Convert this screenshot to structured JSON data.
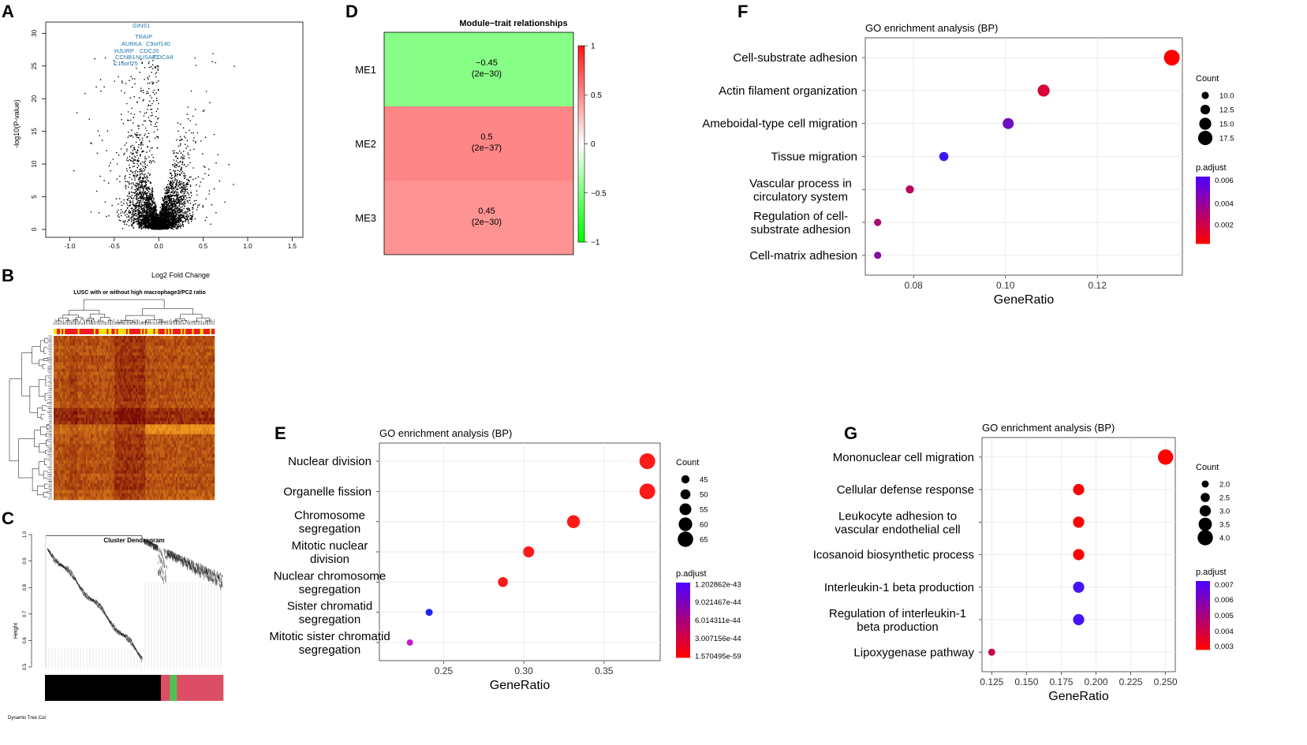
{
  "panel_letters": {
    "A": "A",
    "B": "B",
    "C": "C",
    "D": "D",
    "E": "E",
    "F": "F",
    "G": "G"
  },
  "colors": {
    "dot": "#000000",
    "label_blue": "#1f77b4",
    "red": "#ff0000",
    "blue": "#1a1aff",
    "green": "#86fe86",
    "pink": "#fe8e8e",
    "module_red": "#dc4e66",
    "module_green": "#52c152"
  },
  "chart_data": [
    {
      "id": "A",
      "type": "scatter",
      "title": "",
      "xlabel": "Log2 Fold Change",
      "ylabel": "-log10(P-value)",
      "xlim": [
        -1.2,
        1.55
      ],
      "ylim": [
        0,
        31
      ],
      "xticks": [
        "-1.0",
        "-0.5",
        "0.0",
        "0.5",
        "1.0",
        "1.5"
      ],
      "xtick_values": [
        -1.0,
        -0.5,
        0.0,
        0.5,
        1.0,
        1.5
      ],
      "yticks": [
        "0",
        "5",
        "10",
        "15",
        "20",
        "25",
        "30"
      ],
      "ytick_values": [
        0,
        5,
        10,
        15,
        20,
        25,
        30
      ],
      "labeled_genes": [
        "GINS1",
        "TRAIP",
        "AURKA",
        "C9orf140",
        "HJURP",
        "CDC20",
        "CCNB1",
        "NUSAP1",
        "CDCA8",
        "C16orf75"
      ],
      "description_points": "volcano-shaped cloud of several thousand gene points"
    },
    {
      "id": "B",
      "type": "heatmap",
      "title": "LUSC with or without high macrophage3/PC2 ratio"
    },
    {
      "id": "C",
      "type": "dendrogram",
      "title": "Cluster Dendrogram",
      "ylabel": "Height",
      "yticks": [
        "0.5",
        "0.6",
        "0.7",
        "0.8",
        "0.9",
        "1.0"
      ],
      "ytick_values": [
        0.5,
        0.6,
        0.7,
        0.8,
        0.9,
        1.0
      ],
      "color_bar_label": "Dynamic Tree Cut",
      "modules": [
        {
          "color": "black",
          "fraction": 0.65
        },
        {
          "color": "pink",
          "fraction": 0.05
        },
        {
          "color": "green",
          "fraction": 0.04
        },
        {
          "color": "pink",
          "fraction": 0.26
        }
      ]
    },
    {
      "id": "D",
      "type": "heatmap",
      "title": "Module−trait relationships",
      "rows": [
        {
          "label": "ME1",
          "value": -0.45,
          "value_label": "−0.45",
          "p_label": "(2e−30)"
        },
        {
          "label": "ME2",
          "value": 0.5,
          "value_label": "0.5",
          "p_label": "(2e−37)"
        },
        {
          "label": "ME3",
          "value": 0.45,
          "value_label": "0.45",
          "p_label": "(2e−30)"
        }
      ],
      "scale_ticks": [
        "1",
        "0.5",
        "0",
        "−0.5",
        "−1"
      ],
      "scale_values": [
        1,
        0.5,
        0,
        -0.5,
        -1
      ]
    },
    {
      "id": "E",
      "type": "scatter",
      "title": "GO enrichment analysis (BP)",
      "xlabel": "GeneRatio",
      "xlim": [
        0.21,
        0.385
      ],
      "xticks": [
        "0.25",
        "0.30",
        "0.35"
      ],
      "xtick_values": [
        0.25,
        0.3,
        0.35
      ],
      "categories": [
        [
          "Nuclear division"
        ],
        [
          "Organelle fission"
        ],
        [
          "Chromosome",
          "segregation"
        ],
        [
          "Mitotic nuclear",
          "division"
        ],
        [
          "Nuclear chromosome",
          "segregation"
        ],
        [
          "Sister chromatid",
          "segregation"
        ],
        [
          "Mitotic sister chromatid",
          "segregation"
        ]
      ],
      "points": [
        {
          "x": 0.377,
          "count": 66,
          "padj": 1.57e-59
        },
        {
          "x": 0.377,
          "count": 66,
          "padj": 1.57e-59
        },
        {
          "x": 0.331,
          "count": 58,
          "padj": 1.57e-59
        },
        {
          "x": 0.303,
          "count": 53,
          "padj": 1.57e-59
        },
        {
          "x": 0.287,
          "count": 50,
          "padj": 1.57e-59
        },
        {
          "x": 0.241,
          "count": 42,
          "padj": 1.2e-43
        },
        {
          "x": 0.229,
          "count": 40,
          "padj": 6e-44
        }
      ],
      "size_legend_title": "Count",
      "size_legend": [
        {
          "label": "45",
          "value": 45
        },
        {
          "label": "50",
          "value": 50
        },
        {
          "label": "55",
          "value": 55
        },
        {
          "label": "60",
          "value": 60
        },
        {
          "label": "65",
          "value": 65
        }
      ],
      "size_range": [
        40,
        66
      ],
      "color_legend_title": "p.adjust",
      "color_legend": [
        "1.202862e-43",
        "9.021467e-44",
        "6.014311e-44",
        "3.007156e-44",
        "1.570495e-59"
      ]
    },
    {
      "id": "F",
      "type": "scatter",
      "title": "GO enrichment analysis (BP)",
      "xlabel": "GeneRatio",
      "xlim": [
        0.0695,
        0.1385
      ],
      "xticks": [
        "0.08",
        "0.10",
        "0.12"
      ],
      "xtick_values": [
        0.08,
        0.1,
        0.12
      ],
      "categories": [
        [
          "Cell-substrate adhesion"
        ],
        [
          "Actin filament organization"
        ],
        [
          "Ameboidal-type cell migration"
        ],
        [
          "Tissue migration"
        ],
        [
          "Vascular process in",
          "circulatory system"
        ],
        [
          "Regulation of cell-",
          "substrate adhesion"
        ],
        [
          "Cell-matrix adhesion"
        ]
      ],
      "points": [
        {
          "x": 0.1362,
          "count": 19,
          "padj": 0.0001
        },
        {
          "x": 0.1083,
          "count": 15,
          "padj": 0.0015
        },
        {
          "x": 0.1006,
          "count": 14,
          "padj": 0.0052
        },
        {
          "x": 0.0866,
          "count": 12,
          "padj": 0.0068
        },
        {
          "x": 0.0792,
          "count": 11,
          "padj": 0.0025
        },
        {
          "x": 0.0722,
          "count": 10,
          "padj": 0.003
        },
        {
          "x": 0.0722,
          "count": 10,
          "padj": 0.0045
        }
      ],
      "size_legend_title": "Count",
      "size_legend": [
        {
          "label": "10.0",
          "value": 10
        },
        {
          "label": "12.5",
          "value": 12.5
        },
        {
          "label": "15.0",
          "value": 15
        },
        {
          "label": "17.5",
          "value": 17.5
        }
      ],
      "size_range": [
        9,
        19
      ],
      "color_legend_title": "p.adjust",
      "color_legend": [
        "0.006",
        "0.004",
        "0.002"
      ],
      "color_legend_values": [
        0.006,
        0.004,
        0.002
      ],
      "color_range": [
        0.0001,
        0.0068
      ]
    },
    {
      "id": "G",
      "type": "scatter",
      "title": "GO enrichment analysis (BP)",
      "xlabel": "GeneRatio",
      "xlim": [
        0.118,
        0.257
      ],
      "xticks": [
        "0.125",
        "0.150",
        "0.175",
        "0.200",
        "0.225",
        "0.250"
      ],
      "xtick_values": [
        0.125,
        0.15,
        0.175,
        0.2,
        0.225,
        0.25
      ],
      "categories": [
        [
          "Mononuclear cell migration"
        ],
        [
          "Cellular defense response"
        ],
        [
          "Leukocyte adhesion to",
          "vascular endothelial cell"
        ],
        [
          "Icosanoid biosynthetic process"
        ],
        [
          "Interleukin-1 beta production"
        ],
        [
          "Regulation of interleukin-1",
          "beta production"
        ],
        [
          "Lipoxygenase pathway"
        ]
      ],
      "points": [
        {
          "x": 0.25,
          "count": 4,
          "padj": 0.0025
        },
        {
          "x": 0.1875,
          "count": 3,
          "padj": 0.0025
        },
        {
          "x": 0.1875,
          "count": 3,
          "padj": 0.0025
        },
        {
          "x": 0.1875,
          "count": 3,
          "padj": 0.0025
        },
        {
          "x": 0.1875,
          "count": 3,
          "padj": 0.0072
        },
        {
          "x": 0.1875,
          "count": 3,
          "padj": 0.0072
        },
        {
          "x": 0.125,
          "count": 2,
          "padj": 0.004
        }
      ],
      "size_legend_title": "Count",
      "size_legend": [
        {
          "label": "2.0",
          "value": 2
        },
        {
          "label": "2.5",
          "value": 2.5
        },
        {
          "label": "3.0",
          "value": 3
        },
        {
          "label": "3.5",
          "value": 3.5
        },
        {
          "label": "4.0",
          "value": 4
        }
      ],
      "size_range": [
        1.6,
        4.1
      ],
      "color_legend_title": "p.adjust",
      "color_legend": [
        "0.007",
        "0.006",
        "0.005",
        "0.004",
        "0.003"
      ],
      "color_legend_values": [
        0.007,
        0.006,
        0.005,
        0.004,
        0.003
      ],
      "color_range": [
        0.0025,
        0.0073
      ]
    }
  ]
}
